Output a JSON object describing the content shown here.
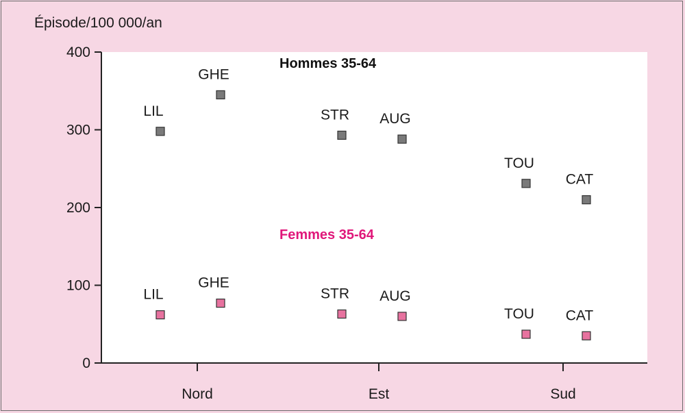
{
  "chart_data": {
    "type": "scatter",
    "ylabel": "Épisode/100 000/an",
    "ylim": [
      0,
      400
    ],
    "yticks": [
      0,
      100,
      200,
      300,
      400
    ],
    "categories": [
      "Nord",
      "Est",
      "Sud"
    ],
    "grid": false,
    "series": [
      {
        "name": "Hommes 35-64",
        "color": "#7a7a7a",
        "points": [
          {
            "label": "LIL",
            "group": "Nord",
            "y": 298
          },
          {
            "label": "GHE",
            "group": "Nord",
            "y": 345
          },
          {
            "label": "STR",
            "group": "Est",
            "y": 293
          },
          {
            "label": "AUG",
            "group": "Est",
            "y": 288
          },
          {
            "label": "TOU",
            "group": "Sud",
            "y": 231
          },
          {
            "label": "CAT",
            "group": "Sud",
            "y": 210
          }
        ]
      },
      {
        "name": "Femmes 35-64",
        "color": "#e7729f",
        "points": [
          {
            "label": "LIL",
            "group": "Nord",
            "y": 62
          },
          {
            "label": "GHE",
            "group": "Nord",
            "y": 77
          },
          {
            "label": "STR",
            "group": "Est",
            "y": 63
          },
          {
            "label": "AUG",
            "group": "Est",
            "y": 60
          },
          {
            "label": "TOU",
            "group": "Sud",
            "y": 37
          },
          {
            "label": "CAT",
            "group": "Sud",
            "y": 35
          }
        ]
      }
    ]
  },
  "colors": {
    "background": "#f7d7e4",
    "plot_area": "#ffffff",
    "hommes_title": "#111111",
    "femmes_title": "#e0177a"
  }
}
